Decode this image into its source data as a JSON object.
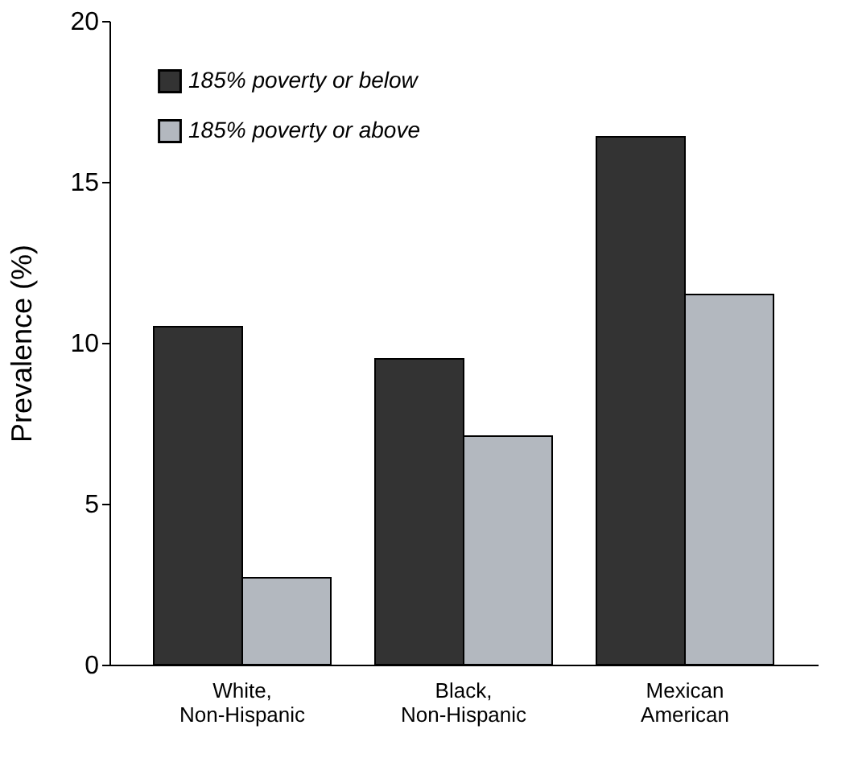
{
  "chart_data": {
    "type": "bar",
    "ylabel": "Prevalence (%)",
    "categories": [
      "White, Non-Hispanic",
      "Black, Non-Hispanic",
      "Mexican American"
    ],
    "series": [
      {
        "name": "185% poverty or below",
        "color": "#333333",
        "values": [
          10.5,
          9.5,
          16.4
        ]
      },
      {
        "name": "185% poverty or above",
        "color": "#b3b8bf",
        "values": [
          2.7,
          7.1,
          11.5
        ]
      }
    ],
    "ylim": [
      0,
      20
    ],
    "yticks": [
      0,
      5,
      10,
      15,
      20
    ],
    "grid": false,
    "legend": "top left"
  }
}
